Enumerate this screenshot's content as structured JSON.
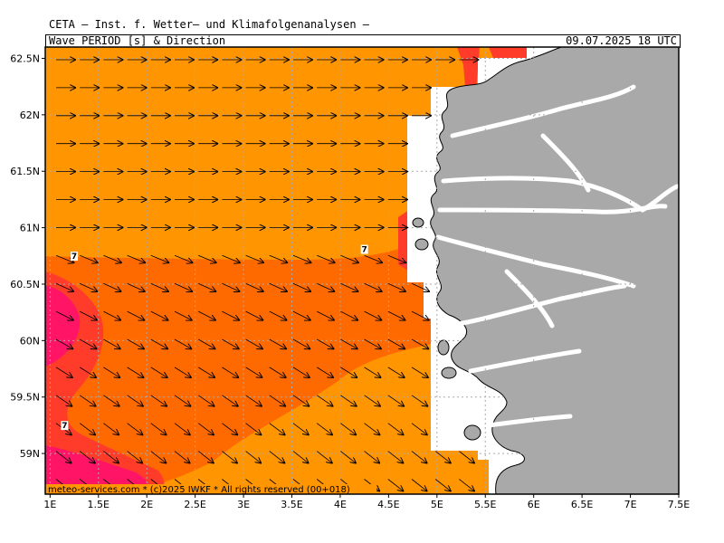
{
  "header": {
    "organization": "CETA – Inst. f. Wetter– und Klimafolgenanalysen –",
    "variable": "Wave_PERIOD_[s]_&_Direction",
    "valid_time": "09.07.2025 18 UTC"
  },
  "map": {
    "lon_range": [
      0.95,
      7.5
    ],
    "lat_range": [
      58.64,
      62.6
    ],
    "x_ticks": [
      {
        "value": 1,
        "label": "1E"
      },
      {
        "value": 1.5,
        "label": "1.5E"
      },
      {
        "value": 2,
        "label": "2E"
      },
      {
        "value": 2.5,
        "label": "2.5E"
      },
      {
        "value": 3,
        "label": "3E"
      },
      {
        "value": 3.5,
        "label": "3.5E"
      },
      {
        "value": 4,
        "label": "4E"
      },
      {
        "value": 4.5,
        "label": "4.5E"
      },
      {
        "value": 5,
        "label": "5E"
      },
      {
        "value": 5.5,
        "label": "5.5E"
      },
      {
        "value": 6,
        "label": "6E"
      },
      {
        "value": 6.5,
        "label": "6.5E"
      },
      {
        "value": 7,
        "label": "7E"
      },
      {
        "value": 7.5,
        "label": "7.5E"
      }
    ],
    "y_ticks": [
      {
        "value": 59,
        "label": "59N"
      },
      {
        "value": 59.5,
        "label": "59.5N"
      },
      {
        "value": 60,
        "label": "60N"
      },
      {
        "value": 60.5,
        "label": "60.5N"
      },
      {
        "value": 61,
        "label": "61N"
      },
      {
        "value": 61.5,
        "label": "61.5N"
      },
      {
        "value": 62,
        "label": "62N"
      },
      {
        "value": 62.5,
        "label": "62.5N"
      }
    ],
    "contour_labels": [
      {
        "lon": 1.25,
        "lat": 60.74,
        "text": "7"
      },
      {
        "lon": 4.25,
        "lat": 60.8,
        "text": "7"
      },
      {
        "lon": 1.15,
        "lat": 59.24,
        "text": "7"
      }
    ],
    "colors": {
      "period_6_7": "#ff9500",
      "period_7_8": "#ff6a00",
      "period_8_9": "#ff3c2a",
      "period_9_10": "#ff1466",
      "land": "#a9a9a9",
      "no_data": "#ffffff"
    },
    "copyright": "meteo-services.com * (c)2025 IWKF * All rights reserved (00+018)"
  }
}
